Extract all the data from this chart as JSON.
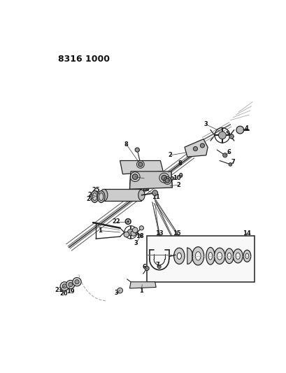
{
  "title": "8316 1000",
  "bg_color": "#ffffff",
  "text_color": "#1a1a1a",
  "line_color": "#222222",
  "fig_width": 4.1,
  "fig_height": 5.33,
  "dpi": 100,
  "shaft_color": "#888888",
  "part_color": "#dddddd",
  "box_fill": "#f8f8f8"
}
